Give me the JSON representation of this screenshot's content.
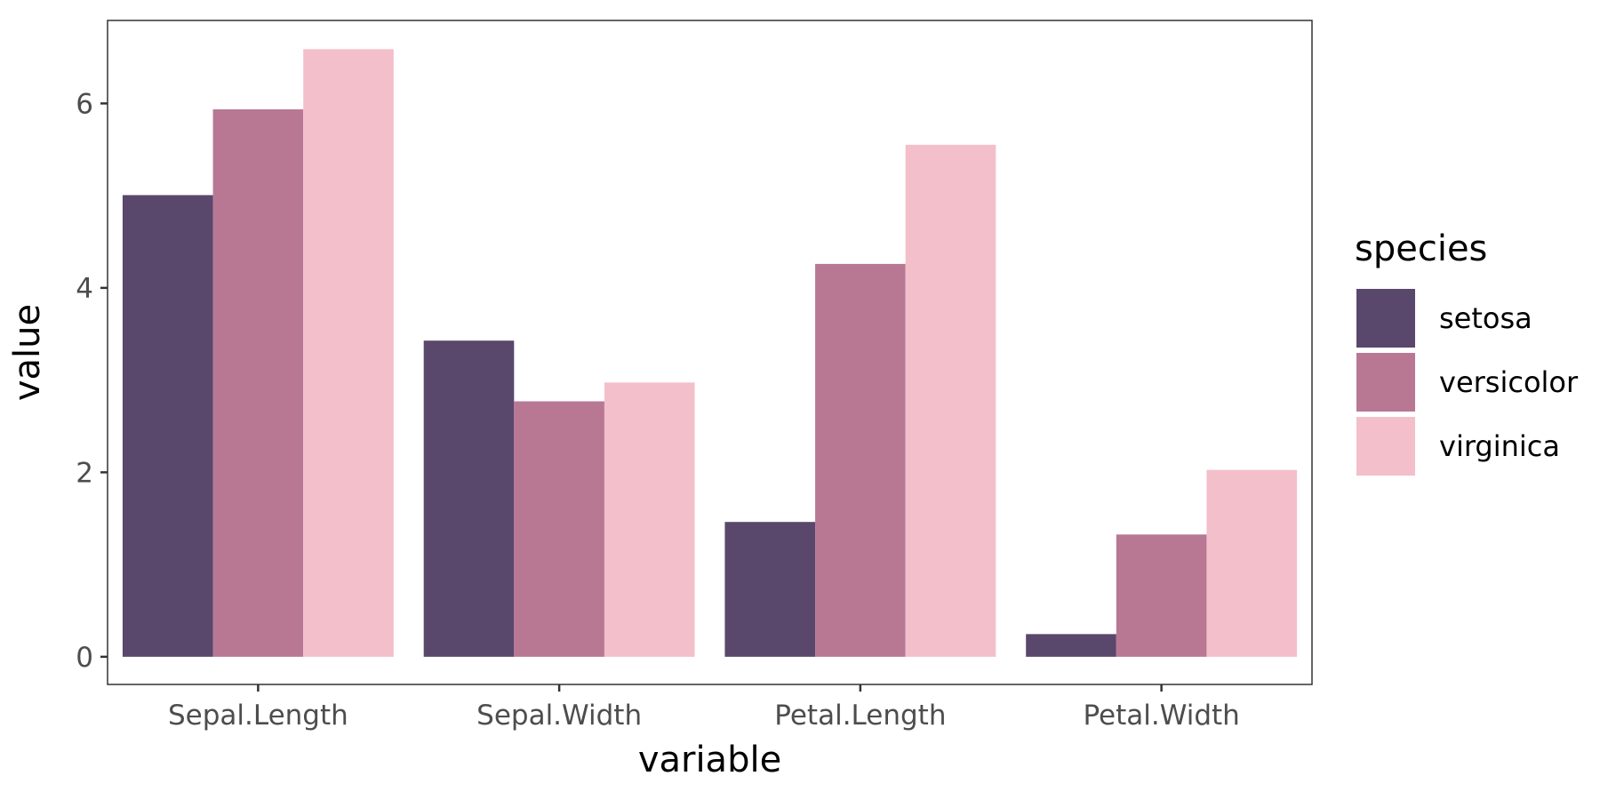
{
  "chart_data": {
    "type": "bar",
    "title": "",
    "xlabel": "variable",
    "ylabel": "value",
    "categories": [
      "Sepal.Length",
      "Sepal.Width",
      "Petal.Length",
      "Petal.Width"
    ],
    "series": [
      {
        "name": "setosa",
        "values": [
          5.006,
          3.428,
          1.462,
          0.246
        ],
        "color": "#5a476c"
      },
      {
        "name": "versicolor",
        "values": [
          5.936,
          2.77,
          4.26,
          1.326
        ],
        "color": "#b87894"
      },
      {
        "name": "virginica",
        "values": [
          6.588,
          2.974,
          5.552,
          2.026
        ],
        "color": "#f3bfca"
      }
    ],
    "ylim": [
      -0.3,
      6.9
    ],
    "yticks": [
      0,
      2,
      4,
      6
    ],
    "ytick_labels": [
      "0",
      "2",
      "4",
      "6"
    ],
    "grid": false,
    "legend": {
      "title": "species",
      "position": "right"
    }
  }
}
